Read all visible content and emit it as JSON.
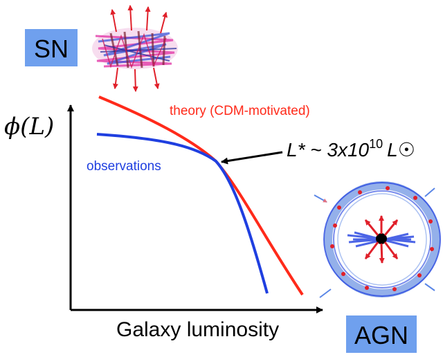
{
  "colors": {
    "theory": "#ff2a1a",
    "observations": "#1f3fe0",
    "label_box": "#6fa0ee",
    "axis": "#000000"
  },
  "labels": {
    "sn": "SN",
    "agn": "AGN",
    "y_axis": "ϕ(L)",
    "x_axis": "Galaxy luminosity",
    "theory": "theory (CDM-motivated)",
    "observations": "observations",
    "lstar_prefix": "L* ~ 3x10",
    "lstar_exponent": "10",
    "lstar_suffix": "L☉"
  },
  "icons": {
    "sn_sketch": "supernova-outflow-sketch",
    "agn_sketch": "agn-outflow-sketch",
    "arrow": "arrow-left-icon"
  }
}
